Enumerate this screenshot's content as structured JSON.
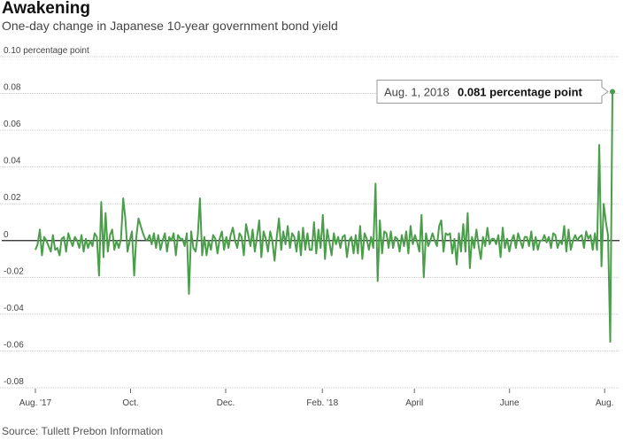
{
  "title": "Awakening",
  "subtitle": "One-day change in Japanese 10-year government bond yield",
  "source": "Source: Tullett Prebon Information",
  "colors": {
    "line": "#4a9e4a",
    "grid": "#cfcfcf",
    "zero": "#222222"
  },
  "chart_data": {
    "type": "line",
    "ylabel_unit": "percentage point",
    "ylim": [
      -0.08,
      0.1
    ],
    "y_ticks": [
      {
        "value": 0.1,
        "label": "0.10 percentage point"
      },
      {
        "value": 0.08,
        "label": "0.08"
      },
      {
        "value": 0.06,
        "label": "0.06"
      },
      {
        "value": 0.04,
        "label": "0.04"
      },
      {
        "value": 0.02,
        "label": "0.02"
      },
      {
        "value": 0,
        "label": "0"
      },
      {
        "value": -0.02,
        "label": "-0.02"
      },
      {
        "value": -0.04,
        "label": "-0.04"
      },
      {
        "value": -0.06,
        "label": "-0.06"
      },
      {
        "value": -0.08,
        "label": "-0.08"
      }
    ],
    "x_ticks": [
      {
        "date": "2017-08-01",
        "label": "Aug. '17"
      },
      {
        "date": "2017-10-01",
        "label": "Oct."
      },
      {
        "date": "2017-12-01",
        "label": "Dec."
      },
      {
        "date": "2018-02-01",
        "label": "Feb. '18"
      },
      {
        "date": "2018-04-01",
        "label": "April"
      },
      {
        "date": "2018-06-01",
        "label": "June"
      },
      {
        "date": "2018-08-01",
        "label": "Aug."
      }
    ],
    "x_range": [
      "2017-08-01",
      "2018-08-06"
    ],
    "grid": "horizontal",
    "series": [
      {
        "values": [
          -0.005,
          -0.002,
          0.006,
          -0.008,
          0.002,
          0.0,
          -0.003,
          -0.006,
          0.003,
          -0.005,
          -0.004,
          -0.008,
          0.001,
          0.002,
          -0.006,
          0.004,
          0.0,
          -0.003,
          0.002,
          0.0,
          -0.004,
          0.003,
          -0.006,
          0.001,
          -0.004,
          0.0,
          -0.003,
          0.004,
          0.002,
          -0.019,
          0.021,
          -0.009,
          0.015,
          -0.006,
          0.003,
          0.006,
          -0.005,
          0.0,
          -0.004,
          0.001,
          0.023,
          0.012,
          -0.006,
          0.0,
          0.005,
          -0.019,
          0.002,
          0.012,
          0.008,
          0.004,
          0.001,
          0.0,
          0.003,
          -0.002,
          0.004,
          -0.004,
          0.003,
          -0.005,
          0.0,
          0.004,
          -0.006,
          0.002,
          0.0,
          0.004,
          -0.008,
          0.003,
          0.001,
          0.001,
          -0.003,
          0.004,
          -0.029,
          0.005,
          -0.004,
          -0.006,
          0.003,
          0.023,
          -0.008,
          0.002,
          -0.008,
          0.0,
          -0.005,
          0.003,
          0.001,
          -0.007,
          0.001,
          0.005,
          -0.005,
          0.002,
          -0.004,
          0.003,
          0.007,
          0.0,
          -0.004,
          0.004,
          0.002,
          -0.008,
          0.009,
          0.003,
          -0.003,
          0.006,
          -0.006,
          0.002,
          0.011,
          -0.009,
          0.005,
          0.001,
          -0.006,
          0.005,
          0.0,
          -0.011,
          0.002,
          0.012,
          -0.005,
          0.005,
          -0.002,
          0.008,
          -0.004,
          0.004,
          0.002,
          -0.006,
          0.005,
          -0.008,
          0.007,
          -0.005,
          0.004,
          -0.005,
          -0.005,
          0.01,
          -0.007,
          0.006,
          -0.004,
          0.014,
          -0.01,
          0.006,
          -0.001,
          -0.008,
          0.004,
          -0.002,
          0.002,
          -0.004,
          0.002,
          0.003,
          -0.009,
          0.0,
          0.002,
          -0.007,
          0.003,
          -0.007,
          0.008,
          -0.01,
          0.004,
          0.001,
          -0.005,
          0.002,
          -0.004,
          0.031,
          -0.022,
          0.011,
          -0.007,
          0.005,
          0.004,
          -0.004,
          0.005,
          -0.004,
          0.002,
          0.001,
          -0.006,
          0.003,
          -0.003,
          0.005,
          -0.007,
          0.008,
          -0.002,
          0.003,
          -0.001,
          -0.006,
          0.014,
          -0.02,
          0.004,
          -0.003,
          0.0,
          0.004,
          0.0,
          -0.003,
          0.008,
          0.011,
          -0.006,
          0.004,
          0.003,
          0.004,
          -0.007,
          0.001,
          -0.013,
          0.004,
          -0.006,
          0.009,
          -0.006,
          0.015,
          -0.015,
          0.002,
          -0.004,
          0.006,
          -0.003,
          -0.01,
          0.002,
          -0.003,
          0.007,
          -0.002,
          0.001,
          0.001,
          -0.002,
          0.003,
          -0.009,
          0.007,
          -0.004,
          0.001,
          -0.006,
          0.0,
          0.003,
          -0.004,
          0.004,
          0.0,
          -0.004,
          0.002,
          0.002,
          -0.003,
          0.005,
          -0.005,
          0.002,
          -0.005,
          0.0,
          0.0,
          0.003,
          -0.001,
          0.002,
          -0.004,
          0.004,
          0.003,
          -0.004,
          0.0,
          -0.002,
          0.008,
          -0.006,
          0.006,
          -0.005,
          0.0,
          0.003,
          0.0,
          0.002,
          0.003,
          -0.004,
          0.005,
          0.001,
          0.003,
          -0.005,
          0.004,
          -0.005,
          0.052,
          -0.014,
          0.02,
          0.01,
          0.003,
          -0.055,
          0.081
        ]
      }
    ],
    "annotation": {
      "date": "Aug. 1, 2018",
      "value_label": "0.081 percentage point",
      "value": 0.081
    }
  }
}
